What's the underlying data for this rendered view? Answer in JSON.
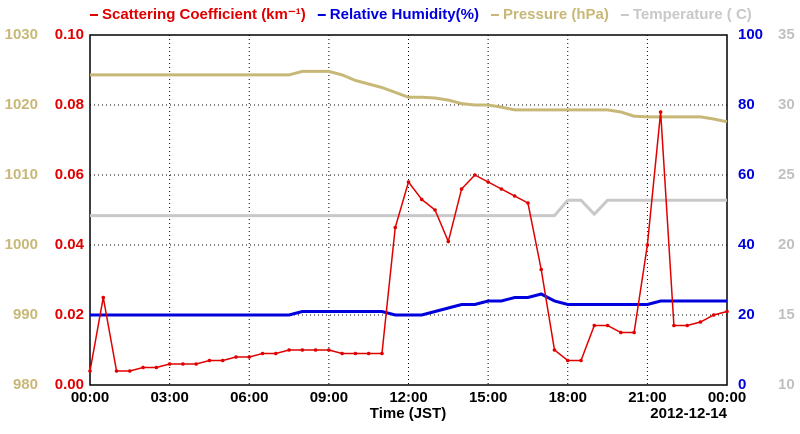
{
  "chart_data": {
    "type": "line",
    "xlabel": "Time (JST)",
    "date_label": "2012-12-14",
    "xlim": [
      0,
      24
    ],
    "xticks": [
      {
        "value": 0,
        "label": "00:00"
      },
      {
        "value": 3,
        "label": "03:00"
      },
      {
        "value": 6,
        "label": "06:00"
      },
      {
        "value": 9,
        "label": "09:00"
      },
      {
        "value": 12,
        "label": "12:00"
      },
      {
        "value": 15,
        "label": "15:00"
      },
      {
        "value": 18,
        "label": "18:00"
      },
      {
        "value": 21,
        "label": "21:00"
      },
      {
        "value": 24,
        "label": "00:00"
      }
    ],
    "ylim": [
      0,
      0.1
    ],
    "yticks": [
      {
        "value": 0,
        "label": "0.00"
      },
      {
        "value": 0.02,
        "label": "0.02"
      },
      {
        "value": 0.04,
        "label": "0.04"
      },
      {
        "value": 0.06,
        "label": "0.06"
      },
      {
        "value": 0.08,
        "label": "0.08"
      },
      {
        "value": 0.1,
        "label": "0.10"
      }
    ],
    "y2lim": [
      0,
      100
    ],
    "y2ticks": [
      0,
      20,
      40,
      60,
      80,
      100
    ],
    "y3lim": [
      980,
      1030
    ],
    "y3ticks": [
      980,
      990,
      1000,
      1010,
      1020,
      1030
    ],
    "y4lim": [
      10,
      35
    ],
    "y4ticks": [
      10,
      15,
      20,
      25,
      30,
      35
    ],
    "grid": true,
    "x": [
      0,
      0.5,
      1,
      1.5,
      2,
      2.5,
      3,
      3.5,
      4,
      4.5,
      5,
      5.5,
      6,
      6.5,
      7,
      7.5,
      8,
      8.5,
      9,
      9.5,
      10,
      10.5,
      11,
      11.5,
      12,
      12.5,
      13,
      13.5,
      14,
      14.5,
      15,
      15.5,
      16,
      16.5,
      17,
      17.5,
      18,
      18.5,
      19,
      19.5,
      20,
      20.5,
      21,
      21.5,
      22,
      22.5,
      23,
      23.5,
      24
    ],
    "series": [
      {
        "name": "Scattering Coefficient (km⁻¹)",
        "color": "#e00000",
        "axis": "y",
        "values": [
          0.004,
          0.025,
          0.004,
          0.004,
          0.005,
          0.005,
          0.006,
          0.006,
          0.006,
          0.007,
          0.007,
          0.008,
          0.008,
          0.009,
          0.009,
          0.01,
          0.01,
          0.01,
          0.01,
          0.009,
          0.009,
          0.009,
          0.009,
          0.045,
          0.058,
          0.053,
          0.05,
          0.041,
          0.056,
          0.06,
          0.058,
          0.056,
          0.054,
          0.052,
          0.033,
          0.01,
          0.007,
          0.007,
          0.017,
          0.017,
          0.015,
          0.015,
          0.04,
          0.078,
          0.017,
          0.017,
          0.018,
          0.02,
          0.021
        ]
      },
      {
        "name": "Relative Humidity(%)",
        "color": "#0000dd",
        "axis": "y2",
        "values": [
          20,
          20,
          20,
          20,
          20,
          20,
          20,
          20,
          20,
          20,
          20,
          20,
          20,
          20,
          20,
          20,
          21,
          21,
          21,
          21,
          21,
          21,
          21,
          20,
          20,
          20,
          21,
          22,
          23,
          23,
          24,
          24,
          25,
          25,
          26,
          24,
          23,
          23,
          23,
          23,
          23,
          23,
          23,
          24,
          24,
          24,
          24,
          24,
          24
        ]
      },
      {
        "name": "Pressure (hPa)",
        "color": "#c8b878",
        "axis": "y3",
        "values": [
          1024.3,
          1024.3,
          1024.3,
          1024.3,
          1024.3,
          1024.3,
          1024.3,
          1024.3,
          1024.3,
          1024.3,
          1024.3,
          1024.3,
          1024.3,
          1024.3,
          1024.3,
          1024.3,
          1024.8,
          1024.8,
          1024.8,
          1024.3,
          1023.5,
          1023,
          1022.5,
          1021.8,
          1021.1,
          1021.1,
          1021,
          1020.7,
          1020.2,
          1020,
          1020,
          1019.7,
          1019.3,
          1019.3,
          1019.3,
          1019.3,
          1019.3,
          1019.3,
          1019.3,
          1019.3,
          1019,
          1018.4,
          1018.3,
          1018.3,
          1018.3,
          1018.3,
          1018.3,
          1018,
          1017.6
        ]
      },
      {
        "name": "Temperature ( C)",
        "color": "#c8c8c8",
        "axis": "y4",
        "values": [
          22.1,
          22.1,
          22.1,
          22.1,
          22.1,
          22.1,
          22.1,
          22.1,
          22.1,
          22.1,
          22.1,
          22.1,
          22.1,
          22.1,
          22.1,
          22.1,
          22.1,
          22.1,
          22.1,
          22.1,
          22.1,
          22.1,
          22.1,
          22.1,
          22.1,
          22.1,
          22.1,
          22.1,
          22.1,
          22.1,
          22.1,
          22.1,
          22.1,
          22.1,
          22.1,
          22.1,
          23.2,
          23.2,
          22.2,
          23.2,
          23.2,
          23.2,
          23.2,
          23.2,
          23.2,
          23.2,
          23.2,
          23.2,
          23.2
        ]
      }
    ]
  }
}
